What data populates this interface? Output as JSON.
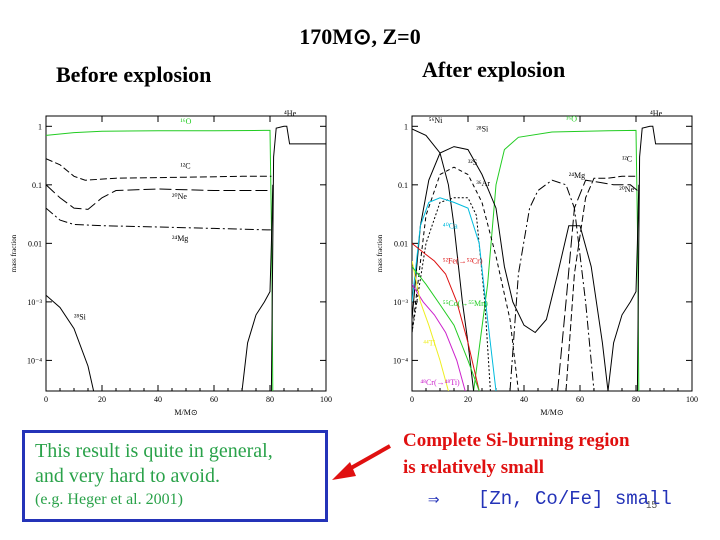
{
  "slide": {
    "title": "170M⊙, Z=0",
    "left_heading": "Before explosion",
    "right_heading": "After explosion",
    "box_line1": "This result is quite in general,",
    "box_line2": "and very hard to avoid.",
    "box_line3": "(e.g. Heger et al. 2001)",
    "red_line1": "Complete Si-burning region",
    "red_line2": "is relatively small",
    "conclusion_arrow": "⇒",
    "conclusion_text": "[Zn, Co/Fe] small",
    "page_number": "15"
  },
  "chart_data": [
    {
      "type": "line",
      "title": "Before explosion",
      "xlabel": "M/M⊙",
      "ylabel": "mass fraction",
      "xlim": [
        0,
        100
      ],
      "ylim": [
        3e-05,
        1.5
      ],
      "yscale": "log",
      "xticks": [
        "0",
        "20",
        "40",
        "60",
        "80",
        "100"
      ],
      "yticks": [
        "1",
        "0.1",
        "0.01",
        "10⁻³",
        "10⁻⁴"
      ],
      "series": [
        {
          "name": "¹⁶O",
          "color": "#22cc22",
          "dash": "",
          "points": [
            [
              0,
              0.7
            ],
            [
              10,
              0.78
            ],
            [
              20,
              0.82
            ],
            [
              40,
              0.84
            ],
            [
              60,
              0.84
            ],
            [
              78,
              0.85
            ],
            [
              80,
              0.85
            ],
            [
              80.6,
              0.01
            ],
            [
              81,
              3e-05
            ]
          ]
        },
        {
          "name": "⁴He",
          "color": "#000000",
          "dash": "",
          "points": [
            [
              80.5,
              3e-05
            ],
            [
              81.3,
              0.3
            ],
            [
              82.2,
              0.93
            ],
            [
              85,
              1.0
            ],
            [
              86,
              1.0
            ],
            [
              87,
              0.5
            ],
            [
              100,
              0.5
            ]
          ]
        },
        {
          "name": "¹²C",
          "color": "#000000",
          "dash": "7,3",
          "points": [
            [
              0,
              0.28
            ],
            [
              5,
              0.22
            ],
            [
              10,
              0.14
            ],
            [
              14,
              0.12
            ],
            [
              25,
              0.13
            ],
            [
              50,
              0.135
            ],
            [
              70,
              0.14
            ],
            [
              79,
              0.14
            ],
            [
              80.5,
              0.14
            ]
          ]
        },
        {
          "name": "²⁰Ne",
          "color": "#000000",
          "dash": "12,4",
          "points": [
            [
              0,
              0.1
            ],
            [
              5,
              0.06
            ],
            [
              10,
              0.04
            ],
            [
              15,
              0.038
            ],
            [
              20,
              0.06
            ],
            [
              25,
              0.08
            ],
            [
              40,
              0.085
            ],
            [
              60,
              0.08
            ],
            [
              79,
              0.08
            ],
            [
              80.5,
              0.08
            ]
          ]
        },
        {
          "name": "²⁴Mg",
          "color": "#000000",
          "dash": "9,3,2,3",
          "points": [
            [
              0,
              0.04
            ],
            [
              5,
              0.025
            ],
            [
              10,
              0.021
            ],
            [
              20,
              0.02
            ],
            [
              40,
              0.019
            ],
            [
              60,
              0.018
            ],
            [
              79,
              0.017
            ],
            [
              80.5,
              0.017
            ]
          ]
        },
        {
          "name": "²⁸Si",
          "color": "#000000",
          "dash": "",
          "points": [
            [
              0,
              0.0013
            ],
            [
              5,
              0.0008
            ],
            [
              10,
              0.00035
            ],
            [
              15,
              8e-05
            ],
            [
              17,
              3e-05
            ]
          ]
        },
        {
          "name": "",
          "color": "#000000",
          "dash": "",
          "points": [
            [
              70,
              3e-05
            ],
            [
              72,
              0.0002
            ],
            [
              75,
              0.0006
            ],
            [
              78,
              0.001
            ],
            [
              80,
              0.0015
            ],
            [
              80.5,
              0.01
            ],
            [
              81,
              0.1
            ]
          ]
        }
      ],
      "labels": [
        {
          "text": "¹⁶O",
          "x": 48,
          "y": 1.1,
          "color": "#22cc22"
        },
        {
          "text": "⁴He",
          "x": 85,
          "y": 1.5,
          "color": "#000000"
        },
        {
          "text": "¹²C",
          "x": 48,
          "y": 0.19,
          "color": "#000000"
        },
        {
          "text": "²⁰Ne",
          "x": 45,
          "y": 0.057,
          "color": "#000000"
        },
        {
          "text": "²⁴Mg",
          "x": 45,
          "y": 0.011,
          "color": "#000000"
        },
        {
          "text": "²⁸Si",
          "x": 10,
          "y": 0.0005,
          "color": "#000000"
        }
      ]
    },
    {
      "type": "line",
      "title": "After explosion",
      "xlabel": "M/M⊙",
      "ylabel": "mass fraction",
      "xlim": [
        0,
        100
      ],
      "ylim": [
        3e-05,
        1.5
      ],
      "yscale": "log",
      "xticks": [
        "0",
        "20",
        "40",
        "60",
        "80",
        "100"
      ],
      "yticks": [
        "1",
        "0.1",
        "0.01",
        "10⁻³",
        "10⁻⁴"
      ],
      "series": [
        {
          "name": "¹⁶O",
          "color": "#22cc22",
          "dash": "",
          "points": [
            [
              22,
              3e-05
            ],
            [
              27,
              0.002
            ],
            [
              30,
              0.1
            ],
            [
              33,
              0.4
            ],
            [
              38,
              0.65
            ],
            [
              50,
              0.8
            ],
            [
              70,
              0.84
            ],
            [
              80,
              0.85
            ],
            [
              80.6,
              0.01
            ],
            [
              81,
              3e-05
            ]
          ]
        },
        {
          "name": "⁴He",
          "color": "#000000",
          "dash": "",
          "points": [
            [
              80.5,
              3e-05
            ],
            [
              81.3,
              0.3
            ],
            [
              82.2,
              0.93
            ],
            [
              85,
              1.0
            ],
            [
              86,
              1.0
            ],
            [
              87,
              0.5
            ],
            [
              100,
              0.5
            ]
          ]
        },
        {
          "name": "⁵⁶Ni",
          "color": "#000000",
          "dash": "",
          "points": [
            [
              0,
              0.9
            ],
            [
              5,
              0.7
            ],
            [
              10,
              0.35
            ],
            [
              13,
              0.1
            ],
            [
              15,
              0.02
            ],
            [
              18,
              0.001
            ],
            [
              20,
              0.0002
            ],
            [
              22,
              3e-05
            ]
          ]
        },
        {
          "name": "²⁸Si",
          "color": "#000000",
          "dash": "",
          "points": [
            [
              0,
              0.0005
            ],
            [
              3,
              0.02
            ],
            [
              6,
              0.12
            ],
            [
              10,
              0.35
            ],
            [
              15,
              0.45
            ],
            [
              20,
              0.4
            ],
            [
              25,
              0.15
            ],
            [
              30,
              0.04
            ],
            [
              33,
              0.004
            ],
            [
              36,
              0.001
            ],
            [
              40,
              0.0004
            ],
            [
              44,
              0.0003
            ],
            [
              48,
              0.0005
            ],
            [
              52,
              0.003
            ],
            [
              56,
              0.02
            ],
            [
              60,
              0.02
            ],
            [
              64,
              0.004
            ],
            [
              68,
              0.0002
            ],
            [
              70,
              3e-05
            ]
          ]
        },
        {
          "name": "³²S",
          "color": "#000000",
          "dash": "4,3",
          "points": [
            [
              0,
              0.0003
            ],
            [
              5,
              0.03
            ],
            [
              10,
              0.15
            ],
            [
              15,
              0.2
            ],
            [
              20,
              0.15
            ],
            [
              25,
              0.05
            ],
            [
              30,
              0.006
            ],
            [
              35,
              0.0005
            ],
            [
              38,
              3e-05
            ]
          ]
        },
        {
          "name": "³⁶Ar",
          "color": "#000000",
          "dash": "2,2",
          "points": [
            [
              0,
              0.0003
            ],
            [
              5,
              0.01
            ],
            [
              10,
              0.05
            ],
            [
              15,
              0.06
            ],
            [
              20,
              0.06
            ],
            [
              23,
              0.03
            ],
            [
              26,
              0.001
            ],
            [
              28,
              3e-05
            ]
          ]
        },
        {
          "name": "²⁴Mg",
          "color": "#000000",
          "dash": "9,3,2,3",
          "points": [
            [
              35,
              3e-05
            ],
            [
              38,
              0.003
            ],
            [
              42,
              0.04
            ],
            [
              45,
              0.08
            ],
            [
              50,
              0.12
            ],
            [
              55,
              0.1
            ],
            [
              58,
              0.04
            ],
            [
              62,
              0.001
            ],
            [
              65,
              3e-05
            ]
          ]
        },
        {
          "name": "²⁰Ne",
          "color": "#000000",
          "dash": "12,4",
          "points": [
            [
              52,
              3e-05
            ],
            [
              55,
              0.001
            ],
            [
              58,
              0.04
            ],
            [
              62,
              0.12
            ],
            [
              67,
              0.11
            ],
            [
              72,
              0.1
            ],
            [
              78,
              0.1
            ],
            [
              80.5,
              0.08
            ]
          ]
        },
        {
          "name": "¹²C",
          "color": "#000000",
          "dash": "7,3",
          "points": [
            [
              55,
              3e-05
            ],
            [
              58,
              0.003
            ],
            [
              62,
              0.06
            ],
            [
              65,
              0.13
            ],
            [
              70,
              0.13
            ],
            [
              75,
              0.14
            ],
            [
              80.5,
              0.14
            ]
          ]
        },
        {
          "name": "⁴⁰Ca",
          "color": "#00bbdd",
          "dash": "",
          "points": [
            [
              0,
              0.001
            ],
            [
              3,
              0.02
            ],
            [
              6,
              0.05
            ],
            [
              10,
              0.06
            ],
            [
              15,
              0.05
            ],
            [
              20,
              0.04
            ],
            [
              24,
              0.01
            ],
            [
              27,
              0.0005
            ],
            [
              30,
              3e-05
            ]
          ]
        },
        {
          "name": "⁵²Fe(→⁵²Cr)",
          "color": "#dd1111",
          "dash": "",
          "points": [
            [
              0,
              0.01
            ],
            [
              4,
              0.007
            ],
            [
              8,
              0.005
            ],
            [
              12,
              0.003
            ],
            [
              16,
              0.001
            ],
            [
              20,
              0.0002
            ],
            [
              24,
              3e-05
            ]
          ]
        },
        {
          "name": "⁴⁸Cr(→⁴⁸Ti)",
          "color": "#cc22cc",
          "dash": "",
          "points": [
            [
              0,
              0.002
            ],
            [
              4,
              0.001
            ],
            [
              8,
              0.0006
            ],
            [
              12,
              0.0003
            ],
            [
              16,
              0.0001
            ],
            [
              19,
              3e-05
            ]
          ]
        },
        {
          "name": "⁴⁴Ti",
          "color": "#eeee22",
          "dash": "",
          "points": [
            [
              0,
              0.005
            ],
            [
              3,
              0.001
            ],
            [
              6,
              0.0004
            ],
            [
              10,
              0.0001
            ],
            [
              13,
              3e-05
            ]
          ]
        },
        {
          "name": "⁵⁵Co(→⁵⁵Mn)",
          "color": "#22cc22",
          "dash": "",
          "points": [
            [
              0,
              0.004
            ],
            [
              5,
              0.002
            ],
            [
              10,
              0.0009
            ],
            [
              15,
              0.0004
            ],
            [
              20,
              0.0001
            ],
            [
              24,
              3e-05
            ]
          ]
        },
        {
          "name": "",
          "color": "#000000",
          "dash": "",
          "points": [
            [
              70,
              3e-05
            ],
            [
              72,
              0.0002
            ],
            [
              75,
              0.0006
            ],
            [
              78,
              0.001
            ],
            [
              80,
              0.0015
            ],
            [
              80.5,
              0.01
            ],
            [
              81,
              0.1
            ]
          ]
        }
      ],
      "labels": [
        {
          "text": "⁵⁶Ni",
          "x": 6,
          "y": 1.15,
          "color": "#000000"
        },
        {
          "text": "²⁸Si",
          "x": 23,
          "y": 0.82,
          "color": "#000000"
        },
        {
          "text": "¹⁶O",
          "x": 55,
          "y": 1.2,
          "color": "#22cc22"
        },
        {
          "text": "⁴He",
          "x": 85,
          "y": 1.5,
          "color": "#000000"
        },
        {
          "text": "³²S",
          "x": 20,
          "y": 0.22,
          "color": "#000000"
        },
        {
          "text": "³⁶Ar",
          "x": 23,
          "y": 0.095,
          "color": "#000000"
        },
        {
          "text": "²⁴Mg",
          "x": 56,
          "y": 0.13,
          "color": "#000000"
        },
        {
          "text": "¹²C",
          "x": 75,
          "y": 0.25,
          "color": "#000000"
        },
        {
          "text": "²⁰Ne",
          "x": 74,
          "y": 0.075,
          "color": "#000000"
        },
        {
          "text": "⁴⁰Ca",
          "x": 11,
          "y": 0.018,
          "color": "#00bbdd"
        },
        {
          "text": "⁵²Fe(→⁵²Cr)",
          "x": 11,
          "y": 0.0045,
          "color": "#dd1111"
        },
        {
          "text": "⁵⁵Co(→⁵⁵Mn)",
          "x": 11,
          "y": 0.00085,
          "color": "#22cc22"
        },
        {
          "text": "⁴⁴Ti",
          "x": 4,
          "y": 0.00018,
          "color": "#eeee22"
        },
        {
          "text": "⁴⁸Cr(→⁴⁸Ti)",
          "x": 3,
          "y": 3.8e-05,
          "color": "#cc22cc"
        }
      ]
    }
  ]
}
